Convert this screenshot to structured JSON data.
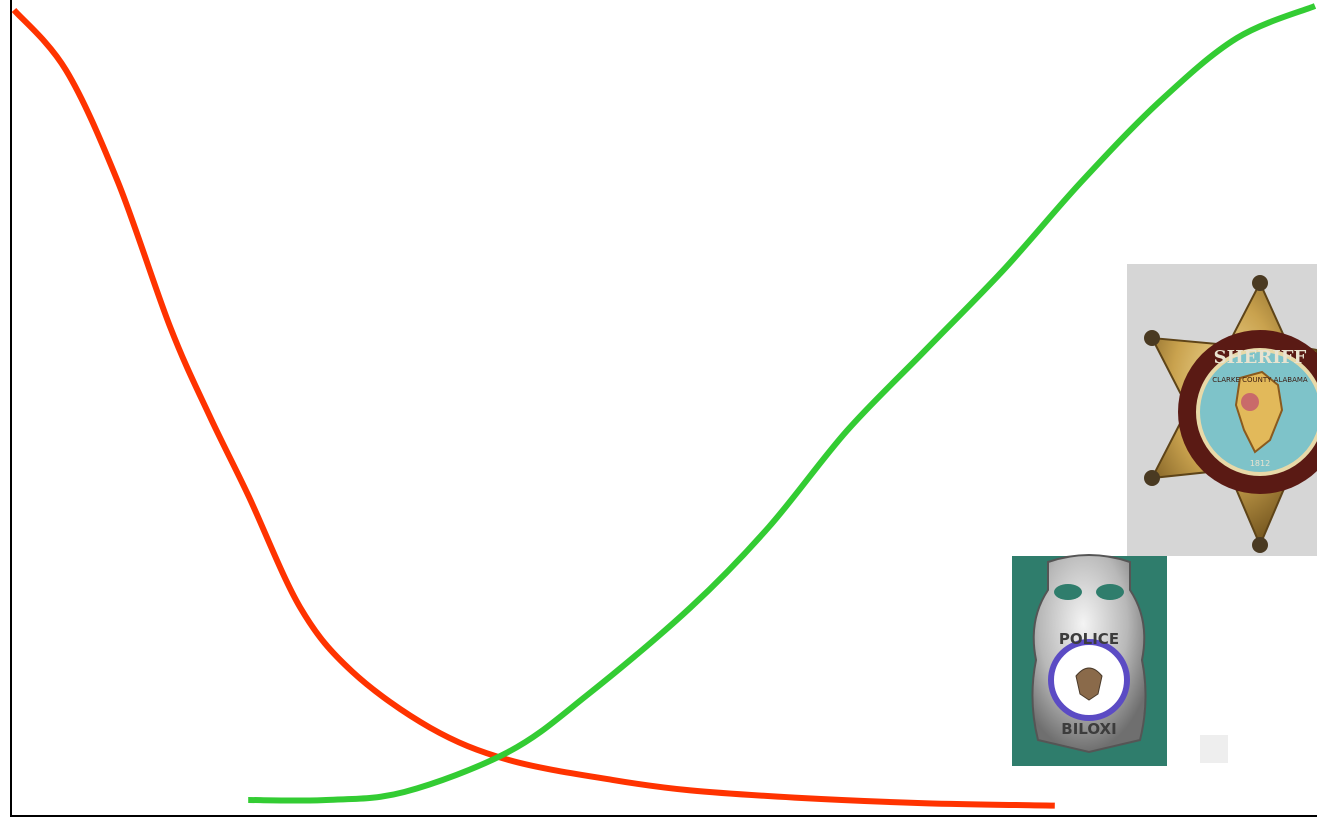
{
  "chart_data": {
    "type": "line",
    "title": "",
    "xlabel": "",
    "ylabel": "",
    "xlim": [
      0,
      100
    ],
    "ylim": [
      0,
      100
    ],
    "grid": false,
    "series": [
      {
        "color": "#ff3300",
        "x": [
          0,
          4,
          8,
          12,
          15,
          18,
          22,
          26,
          32,
          38,
          46,
          52,
          60,
          70,
          80
        ],
        "y": [
          99.5,
          92,
          78,
          60,
          49,
          39,
          25,
          17,
          10,
          6,
          3.5,
          2.2,
          1.3,
          0.6,
          0.3
        ]
      },
      {
        "color": "#33cc33",
        "x": [
          18,
          24,
          30,
          38,
          44,
          52,
          58,
          64,
          70,
          76,
          82,
          88,
          94,
          100
        ],
        "y": [
          1,
          1,
          2,
          7,
          14,
          25,
          35,
          47,
          57,
          67,
          78,
          88,
          96,
          100
        ]
      }
    ]
  },
  "decorations": {
    "sheriff_badge": {
      "icon": "sheriff-star-badge-icon",
      "text_top": "SHERIFF",
      "text_ring": "CLARKE COUNTY ALABAMA",
      "text_bottom": "1812"
    },
    "police_badge": {
      "icon": "police-shield-badge-icon",
      "text_top": "POLICE",
      "text_bottom": "BILOXI"
    }
  }
}
